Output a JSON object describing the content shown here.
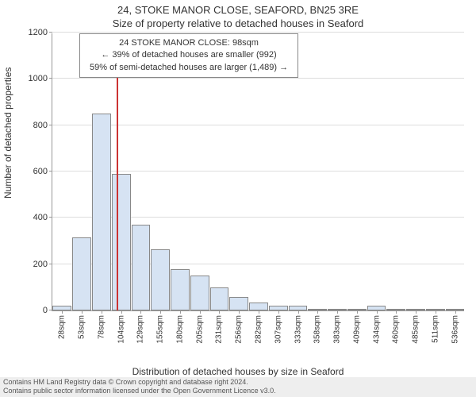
{
  "title": "24, STOKE MANOR CLOSE, SEAFORD, BN25 3RE",
  "subtitle": "Size of property relative to detached houses in Seaford",
  "info_box": {
    "line1": "24 STOKE MANOR CLOSE: 98sqm",
    "line2": "← 39% of detached houses are smaller (992)",
    "line3": "59% of semi-detached houses are larger (1,489) →"
  },
  "ylabel": "Number of detached properties",
  "xlabel": "Distribution of detached houses by size in Seaford",
  "footer": {
    "line1": "Contains HM Land Registry data © Crown copyright and database right 2024.",
    "line2": "Contains public sector information licensed under the Open Government Licence v3.0."
  },
  "chart": {
    "type": "histogram",
    "ylim": [
      0,
      1200
    ],
    "ytick_step": 200,
    "yticks": [
      0,
      200,
      400,
      600,
      800,
      1000,
      1200
    ],
    "xtick_labels": [
      "28sqm",
      "53sqm",
      "78sqm",
      "104sqm",
      "129sqm",
      "155sqm",
      "180sqm",
      "205sqm",
      "231sqm",
      "256sqm",
      "282sqm",
      "307sqm",
      "333sqm",
      "358sqm",
      "383sqm",
      "409sqm",
      "434sqm",
      "460sqm",
      "485sqm",
      "511sqm",
      "536sqm"
    ],
    "bar_values": [
      20,
      315,
      850,
      590,
      370,
      265,
      180,
      150,
      100,
      60,
      35,
      20,
      20,
      5,
      5,
      5,
      20,
      5,
      5,
      5,
      5
    ],
    "bar_color": "#d6e3f3",
    "bar_border_color": "#888888",
    "grid_color": "#dddddd",
    "background_color": "#ffffff",
    "marker_line_color": "#cc3333",
    "marker_position_sqm": 98,
    "title_fontsize": 13,
    "label_fontsize": 12,
    "tick_fontsize": 11
  }
}
